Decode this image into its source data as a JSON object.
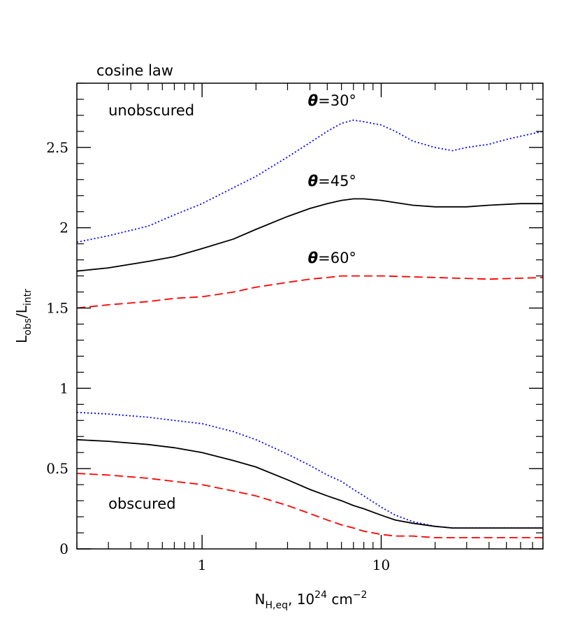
{
  "chart_data": {
    "type": "line",
    "title": "cosine law",
    "xlabel": {
      "base": "N",
      "sub": "H,eq",
      "rest": ",  10",
      "sup": "24",
      "unit": " cm",
      "unit_sup": "−2"
    },
    "ylabel": {
      "base1": "L",
      "sub1": "obs",
      "slash": "/",
      "base2": "L",
      "sub2": "intr"
    },
    "xscale": "log",
    "xlim": [
      0.2,
      80
    ],
    "ylim": [
      0,
      2.9
    ],
    "x_ticks": [
      1,
      10
    ],
    "x_tick_labels": [
      "1",
      "10"
    ],
    "y_ticks": [
      0,
      0.5,
      1,
      1.5,
      2,
      2.5
    ],
    "y_tick_labels": [
      "0",
      "0.5",
      "1",
      "1.5",
      "2",
      "2.5"
    ],
    "grid": false,
    "annotations": [
      {
        "text": "unobscured",
        "x": 0.3,
        "y": 2.7
      },
      {
        "text": "obscured",
        "x": 0.3,
        "y": 0.25
      }
    ],
    "angle_labels": [
      {
        "angle": "30°",
        "x": 3.9,
        "y": 2.76
      },
      {
        "angle": "45°",
        "x": 3.9,
        "y": 2.26
      },
      {
        "angle": "60°",
        "x": 3.9,
        "y": 1.78
      }
    ],
    "angle_symbol": "θ",
    "angle_eq": "=",
    "series": [
      {
        "name": "θ=30° unobscured",
        "color": "#0000ff",
        "style": "dotted",
        "x": [
          0.2,
          0.3,
          0.5,
          0.7,
          1,
          1.5,
          2,
          3,
          4,
          5,
          6,
          7,
          8,
          10,
          12,
          15,
          20,
          25,
          30,
          40,
          50,
          60,
          80
        ],
        "y": [
          1.91,
          1.95,
          2.01,
          2.08,
          2.15,
          2.25,
          2.32,
          2.44,
          2.53,
          2.6,
          2.65,
          2.67,
          2.66,
          2.64,
          2.6,
          2.54,
          2.5,
          2.48,
          2.5,
          2.52,
          2.55,
          2.57,
          2.6
        ]
      },
      {
        "name": "θ=45° unobscured",
        "color": "#000000",
        "style": "solid",
        "x": [
          0.2,
          0.3,
          0.5,
          0.7,
          1,
          1.5,
          2,
          3,
          4,
          5,
          6,
          7,
          8,
          10,
          15,
          20,
          30,
          40,
          60,
          80
        ],
        "y": [
          1.73,
          1.75,
          1.79,
          1.82,
          1.87,
          1.93,
          1.99,
          2.07,
          2.12,
          2.15,
          2.17,
          2.18,
          2.18,
          2.17,
          2.14,
          2.13,
          2.13,
          2.14,
          2.15,
          2.15
        ]
      },
      {
        "name": "θ=60° unobscured",
        "color": "#ff0000",
        "style": "dashed",
        "x": [
          0.2,
          0.3,
          0.5,
          0.7,
          1,
          1.5,
          2,
          3,
          4,
          5,
          6,
          8,
          10,
          20,
          40,
          80
        ],
        "y": [
          1.5,
          1.52,
          1.54,
          1.56,
          1.57,
          1.6,
          1.63,
          1.66,
          1.68,
          1.69,
          1.7,
          1.7,
          1.7,
          1.69,
          1.68,
          1.69
        ]
      },
      {
        "name": "θ=30° obscured",
        "color": "#0000ff",
        "style": "dotted",
        "x": [
          0.2,
          0.3,
          0.5,
          0.7,
          1,
          1.5,
          2,
          3,
          4,
          5,
          6,
          7,
          8,
          10,
          12,
          15,
          20,
          25,
          30,
          40,
          60,
          80
        ],
        "y": [
          0.85,
          0.84,
          0.82,
          0.8,
          0.78,
          0.73,
          0.68,
          0.59,
          0.52,
          0.46,
          0.42,
          0.37,
          0.33,
          0.26,
          0.21,
          0.17,
          0.14,
          0.13,
          0.13,
          0.13,
          0.13,
          0.13
        ]
      },
      {
        "name": "θ=45° obscured",
        "color": "#000000",
        "style": "solid",
        "x": [
          0.2,
          0.3,
          0.5,
          0.7,
          1,
          1.5,
          2,
          3,
          4,
          5,
          6,
          7,
          8,
          10,
          12,
          15,
          20,
          25,
          30,
          40,
          60,
          80
        ],
        "y": [
          0.68,
          0.67,
          0.65,
          0.63,
          0.6,
          0.55,
          0.51,
          0.43,
          0.37,
          0.33,
          0.3,
          0.27,
          0.25,
          0.21,
          0.18,
          0.16,
          0.14,
          0.13,
          0.13,
          0.13,
          0.13,
          0.13
        ]
      },
      {
        "name": "θ=60° obscured",
        "color": "#ff0000",
        "style": "dashed",
        "x": [
          0.2,
          0.3,
          0.5,
          0.7,
          1,
          1.5,
          2,
          3,
          4,
          5,
          6,
          7,
          8,
          10,
          12,
          15,
          20,
          30,
          40,
          60,
          80
        ],
        "y": [
          0.47,
          0.46,
          0.44,
          0.42,
          0.4,
          0.36,
          0.33,
          0.27,
          0.22,
          0.18,
          0.15,
          0.13,
          0.11,
          0.09,
          0.08,
          0.08,
          0.07,
          0.07,
          0.07,
          0.07,
          0.07
        ]
      }
    ]
  }
}
